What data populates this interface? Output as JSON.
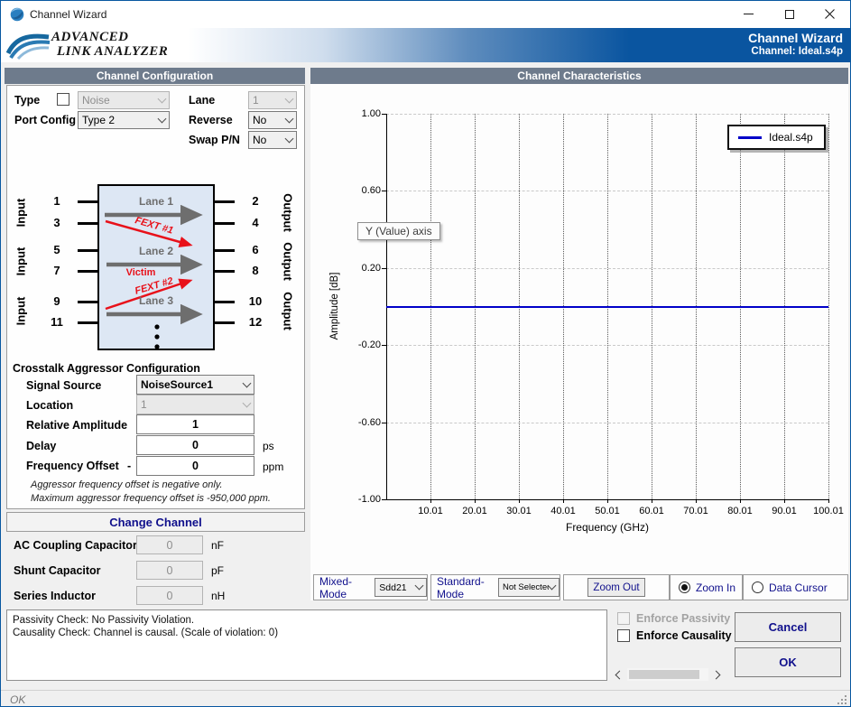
{
  "window": {
    "title": "Channel Wizard"
  },
  "banner": {
    "logo_line1": "ADVANCED",
    "logo_line2": "LINK ANALYZER",
    "title": "Channel Wizard",
    "subtitle": "Channel: Ideal.s4p"
  },
  "left_panel": {
    "header": "Channel Configuration",
    "fields": {
      "type_label": "Type",
      "type_value": "Noise",
      "port_config_label": "Port Config",
      "port_config_value": "Type 2",
      "lane_label": "Lane",
      "lane_value": "1",
      "reverse_label": "Reverse",
      "reverse_value": "No",
      "swap_label": "Swap P/N",
      "swap_value": "No"
    },
    "diagram": {
      "input_label": "Input",
      "output_label": "Output",
      "left_pins": [
        "1",
        "3",
        "5",
        "7",
        "9",
        "11"
      ],
      "right_pins": [
        "2",
        "4",
        "6",
        "8",
        "10",
        "12"
      ],
      "lane1": "Lane 1",
      "lane2": "Lane 2",
      "lane3": "Lane 3",
      "fext1": "FEXT #1",
      "fext2": "FEXT #2",
      "victim": "Victim"
    },
    "crosstalk": {
      "title": "Crosstalk Aggressor Configuration",
      "signal_source_label": "Signal Source",
      "signal_source_value": "NoiseSource1",
      "location_label": "Location",
      "location_value": "1",
      "relative_amplitude_label": "Relative Amplitude",
      "relative_amplitude_value": "1",
      "delay_label": "Delay",
      "delay_value": "0",
      "delay_unit": "ps",
      "frequency_offset_label": "Frequency Offset",
      "frequency_offset_minus": "-",
      "frequency_offset_value": "0",
      "frequency_offset_unit": "ppm",
      "note1": "Aggressor frequency offset is negative only.",
      "note2": "Maximum aggressor frequency offset is -950,000 ppm."
    },
    "change_channel_label": "Change Channel",
    "rlc": [
      {
        "label": "AC Coupling Capacitor",
        "value": "0",
        "unit": "nF"
      },
      {
        "label": "Shunt Capacitor",
        "value": "0",
        "unit": "pF"
      },
      {
        "label": "Series Inductor",
        "value": "0",
        "unit": "nH"
      }
    ]
  },
  "right_panel": {
    "header": "Channel Characteristics",
    "tooltip": "Y (Value) axis",
    "controls": {
      "mixed_mode_label": "Mixed-Mode",
      "mixed_mode_value": "Sdd21",
      "standard_mode_label": "Standard-Mode",
      "standard_mode_value": "Not Selected",
      "zoom_out": "Zoom Out",
      "zoom_in": "Zoom In",
      "data_cursor": "Data Cursor"
    }
  },
  "chart_data": {
    "type": "line",
    "title": "",
    "xlabel": "Frequency (GHz)",
    "ylabel": "Amplitude [dB]",
    "xlim": [
      0.01,
      100.01
    ],
    "ylim": [
      -1.0,
      1.0
    ],
    "x_ticks": [
      "10.01",
      "20.01",
      "30.01",
      "40.01",
      "50.01",
      "60.01",
      "70.01",
      "80.01",
      "90.01",
      "100.01"
    ],
    "y_ticks": [
      "1.00",
      "0.60",
      "0.20",
      "-0.20",
      "-0.60",
      "-1.00"
    ],
    "grid": true,
    "legend_position": "top-right",
    "series": [
      {
        "name": "Ideal.s4p",
        "color": "#0000c8",
        "x": [
          0.01,
          100.01
        ],
        "y": [
          0,
          0
        ]
      }
    ]
  },
  "footer": {
    "passivity_line1": "Passivity Check: No Passivity Violation.",
    "passivity_line2": "Causality Check: Channel is causal. (Scale of violation: 0)",
    "enforce_passivity": "Enforce Passivity",
    "enforce_causality": "Enforce Causality",
    "cancel": "Cancel",
    "ok": "OK",
    "status": "OK"
  },
  "colors": {
    "accent_blue": "#0a55a0",
    "header_gray": "#6e7b8c",
    "navy_text": "#10108c",
    "fext_red": "#e8111a",
    "series_blue": "#0000c8"
  }
}
